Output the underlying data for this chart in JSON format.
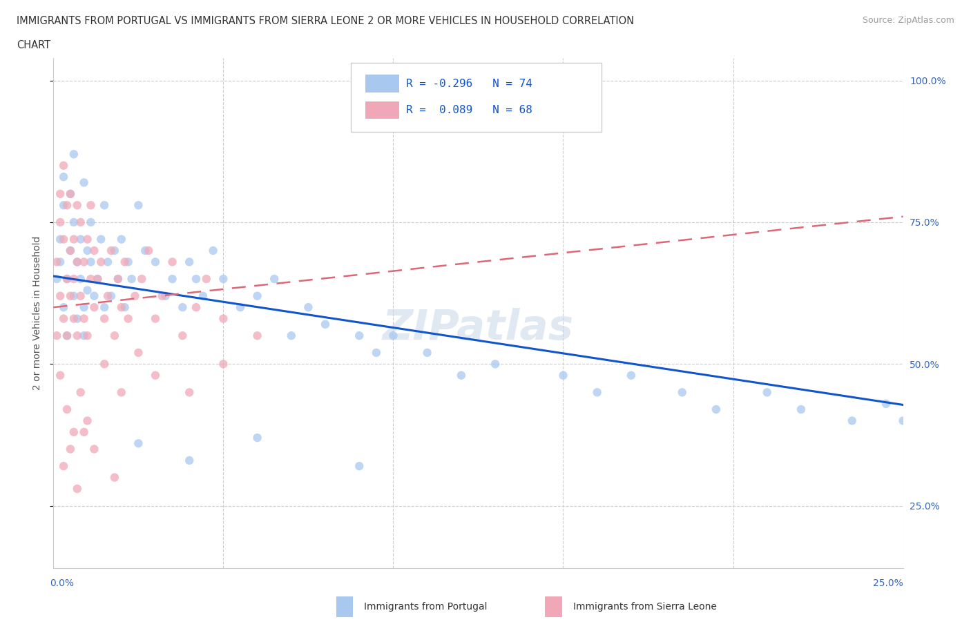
{
  "title_line1": "IMMIGRANTS FROM PORTUGAL VS IMMIGRANTS FROM SIERRA LEONE 2 OR MORE VEHICLES IN HOUSEHOLD CORRELATION",
  "title_line2": "CHART",
  "source": "Source: ZipAtlas.com",
  "ylabel": "2 or more Vehicles in Household",
  "xlim": [
    0.0,
    0.25
  ],
  "ylim": [
    0.14,
    1.04
  ],
  "right_yticks": [
    0.25,
    0.5,
    0.75,
    1.0
  ],
  "right_yticklabels": [
    "25.0%",
    "50.0%",
    "75.0%",
    "100.0%"
  ],
  "color_portugal": "#a8c8f0",
  "color_sierra_leone": "#f0a8b8",
  "color_line_portugal": "#1155cc",
  "color_line_sierra_leone": "#dd6677",
  "watermark": "ZIPatlas",
  "portugal_x": [
    0.001,
    0.002,
    0.002,
    0.003,
    0.003,
    0.004,
    0.004,
    0.005,
    0.005,
    0.006,
    0.006,
    0.007,
    0.007,
    0.008,
    0.008,
    0.009,
    0.009,
    0.01,
    0.01,
    0.011,
    0.011,
    0.012,
    0.013,
    0.014,
    0.015,
    0.016,
    0.017,
    0.018,
    0.019,
    0.02,
    0.021,
    0.022,
    0.023,
    0.025,
    0.027,
    0.03,
    0.033,
    0.035,
    0.038,
    0.04,
    0.042,
    0.044,
    0.047,
    0.05,
    0.055,
    0.06,
    0.065,
    0.07,
    0.075,
    0.08,
    0.09,
    0.095,
    0.1,
    0.11,
    0.12,
    0.13,
    0.15,
    0.16,
    0.17,
    0.185,
    0.195,
    0.21,
    0.22,
    0.235,
    0.245,
    0.25,
    0.003,
    0.006,
    0.009,
    0.015,
    0.025,
    0.04,
    0.06,
    0.09
  ],
  "portugal_y": [
    0.65,
    0.68,
    0.72,
    0.6,
    0.78,
    0.65,
    0.55,
    0.7,
    0.8,
    0.62,
    0.75,
    0.68,
    0.58,
    0.72,
    0.65,
    0.6,
    0.55,
    0.7,
    0.63,
    0.68,
    0.75,
    0.62,
    0.65,
    0.72,
    0.6,
    0.68,
    0.62,
    0.7,
    0.65,
    0.72,
    0.6,
    0.68,
    0.65,
    0.78,
    0.7,
    0.68,
    0.62,
    0.65,
    0.6,
    0.68,
    0.65,
    0.62,
    0.7,
    0.65,
    0.6,
    0.62,
    0.65,
    0.55,
    0.6,
    0.57,
    0.55,
    0.52,
    0.55,
    0.52,
    0.48,
    0.5,
    0.48,
    0.45,
    0.48,
    0.45,
    0.42,
    0.45,
    0.42,
    0.4,
    0.43,
    0.4,
    0.83,
    0.87,
    0.82,
    0.78,
    0.36,
    0.33,
    0.37,
    0.32
  ],
  "sierra_leone_x": [
    0.001,
    0.001,
    0.002,
    0.002,
    0.002,
    0.003,
    0.003,
    0.003,
    0.004,
    0.004,
    0.004,
    0.005,
    0.005,
    0.005,
    0.006,
    0.006,
    0.006,
    0.007,
    0.007,
    0.007,
    0.008,
    0.008,
    0.009,
    0.009,
    0.01,
    0.01,
    0.011,
    0.011,
    0.012,
    0.012,
    0.013,
    0.014,
    0.015,
    0.016,
    0.017,
    0.018,
    0.019,
    0.02,
    0.021,
    0.022,
    0.024,
    0.026,
    0.028,
    0.03,
    0.032,
    0.035,
    0.038,
    0.042,
    0.045,
    0.05,
    0.002,
    0.004,
    0.006,
    0.008,
    0.01,
    0.003,
    0.005,
    0.007,
    0.009,
    0.015,
    0.02,
    0.025,
    0.03,
    0.04,
    0.05,
    0.06,
    0.012,
    0.018
  ],
  "sierra_leone_y": [
    0.55,
    0.68,
    0.75,
    0.8,
    0.62,
    0.72,
    0.58,
    0.85,
    0.65,
    0.78,
    0.55,
    0.7,
    0.62,
    0.8,
    0.58,
    0.72,
    0.65,
    0.68,
    0.55,
    0.78,
    0.62,
    0.75,
    0.58,
    0.68,
    0.72,
    0.55,
    0.65,
    0.78,
    0.6,
    0.7,
    0.65,
    0.68,
    0.58,
    0.62,
    0.7,
    0.55,
    0.65,
    0.6,
    0.68,
    0.58,
    0.62,
    0.65,
    0.7,
    0.58,
    0.62,
    0.68,
    0.55,
    0.6,
    0.65,
    0.58,
    0.48,
    0.42,
    0.38,
    0.45,
    0.4,
    0.32,
    0.35,
    0.28,
    0.38,
    0.5,
    0.45,
    0.52,
    0.48,
    0.45,
    0.5,
    0.55,
    0.35,
    0.3
  ]
}
